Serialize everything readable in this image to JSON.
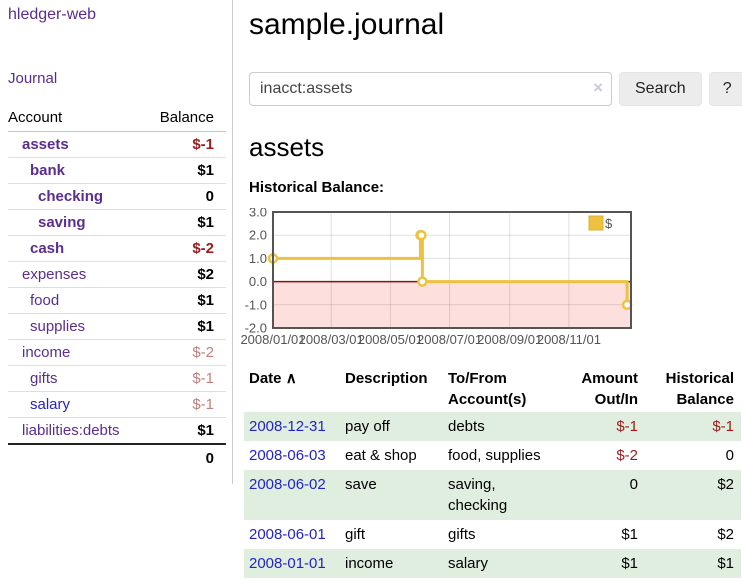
{
  "brand": "hledger-web",
  "nav": {
    "journal": "Journal"
  },
  "sidebar": {
    "headers": {
      "account": "Account",
      "balance": "Balance"
    },
    "accounts": [
      {
        "name": "assets",
        "depth": 1,
        "balance": "$-1",
        "style": "current",
        "value_style": "neg-strong"
      },
      {
        "name": "bank",
        "depth": 2,
        "balance": "$1",
        "style": "current",
        "value_style": "pos"
      },
      {
        "name": "checking",
        "depth": 3,
        "balance": "0",
        "style": "current",
        "value_style": "pos"
      },
      {
        "name": "saving",
        "depth": 3,
        "balance": "$1",
        "style": "current",
        "value_style": "pos"
      },
      {
        "name": "cash",
        "depth": 2,
        "balance": "$-2",
        "style": "current",
        "value_style": "neg-strong"
      },
      {
        "name": "expenses",
        "depth": 1,
        "balance": "$2",
        "style": "normal",
        "value_style": "pos"
      },
      {
        "name": "food",
        "depth": 2,
        "balance": "$1",
        "style": "normal",
        "value_style": "pos"
      },
      {
        "name": "supplies",
        "depth": 2,
        "balance": "$1",
        "style": "normal",
        "value_style": "pos"
      },
      {
        "name": "income",
        "depth": 1,
        "balance": "$-2",
        "style": "normal",
        "value_style": "neg-soft"
      },
      {
        "name": "gifts",
        "depth": 2,
        "balance": "$-1",
        "style": "normal",
        "value_style": "neg-soft"
      },
      {
        "name": "salary",
        "depth": 2,
        "balance": "$-1",
        "style": "unvisited",
        "value_style": "neg-soft"
      },
      {
        "name": "liabilities:debts",
        "depth": 1,
        "balance": "$1",
        "style": "normal",
        "value_style": "pos"
      }
    ],
    "total": "0"
  },
  "main": {
    "title": "sample.journal",
    "search": {
      "value": "inacct:assets",
      "clear": "×",
      "button": "Search",
      "help": "?"
    },
    "heading": "assets",
    "chart_title": "Historical Balance:"
  },
  "chart_data": {
    "type": "line",
    "subtype": "step",
    "title": "Historical Balance",
    "series": [
      {
        "name": "$",
        "color": "#edc240",
        "points": [
          {
            "x": "2008-01-01",
            "y": 1
          },
          {
            "x": "2008-06-01",
            "y": 2
          },
          {
            "x": "2008-06-02",
            "y": 2
          },
          {
            "x": "2008-06-03",
            "y": 0
          },
          {
            "x": "2008-12-31",
            "y": -1
          }
        ]
      }
    ],
    "ylim": [
      -2,
      3
    ],
    "yticks": [
      {
        "v": 3,
        "label": "3.0"
      },
      {
        "v": 2,
        "label": "2.0"
      },
      {
        "v": 1,
        "label": "1.0"
      },
      {
        "v": 0,
        "label": "0.0"
      },
      {
        "v": -1,
        "label": "-1.0"
      },
      {
        "v": -2,
        "label": "-2.0"
      }
    ],
    "xlim": [
      "2008-01-01",
      "2009-01-04"
    ],
    "xticks": [
      {
        "date": "2008-01-01",
        "label": "2008/01/01"
      },
      {
        "date": "2008-03-01",
        "label": "2008/03/01"
      },
      {
        "date": "2008-05-01",
        "label": "2008/05/01"
      },
      {
        "date": "2008-07-01",
        "label": "2008/07/01"
      },
      {
        "date": "2008-09-01",
        "label": "2008/09/01"
      },
      {
        "date": "2008-11-01",
        "label": "2008/11/01"
      }
    ],
    "legend": {
      "label": "$",
      "position": "top-right"
    },
    "grid": true,
    "zero_line_color": "#8b0f0f",
    "negative_region_color": "#fde0de"
  },
  "register": {
    "columns": [
      {
        "label": "Date",
        "sortable": true
      },
      {
        "label": "Description"
      },
      {
        "label": "To/From Account(s)"
      },
      {
        "label": "Amount Out/In",
        "align": "right"
      },
      {
        "label": "Historical Balance",
        "align": "right"
      }
    ],
    "sort_icon": "∧",
    "rows": [
      {
        "date": "2008-12-31",
        "description": "pay off",
        "accounts": "debts",
        "amount": "$-1",
        "amount_negative": true,
        "balance": "$-1",
        "balance_negative": true
      },
      {
        "date": "2008-06-03",
        "description": "eat & shop",
        "accounts": "food, supplies",
        "amount": "$-2",
        "amount_negative": true,
        "balance": "0",
        "balance_negative": false
      },
      {
        "date": "2008-06-02",
        "description": "save",
        "accounts": "saving, checking",
        "amount": "0",
        "amount_negative": false,
        "balance": "$2",
        "balance_negative": false
      },
      {
        "date": "2008-06-01",
        "description": "gift",
        "accounts": "gifts",
        "amount": "$1",
        "amount_negative": false,
        "balance": "$2",
        "balance_negative": false
      },
      {
        "date": "2008-01-01",
        "description": "income",
        "accounts": "salary",
        "amount": "$1",
        "amount_negative": false,
        "balance": "$1",
        "balance_negative": false
      }
    ]
  },
  "colors": {
    "link_purple": "#5b2d90",
    "link_blue": "#2323cc",
    "negative_strong": "#9e1b1b",
    "negative_soft": "#c07f7f",
    "stripe_green": "#dfeede",
    "chart_gold": "#edc240",
    "chart_border": "#545454"
  }
}
